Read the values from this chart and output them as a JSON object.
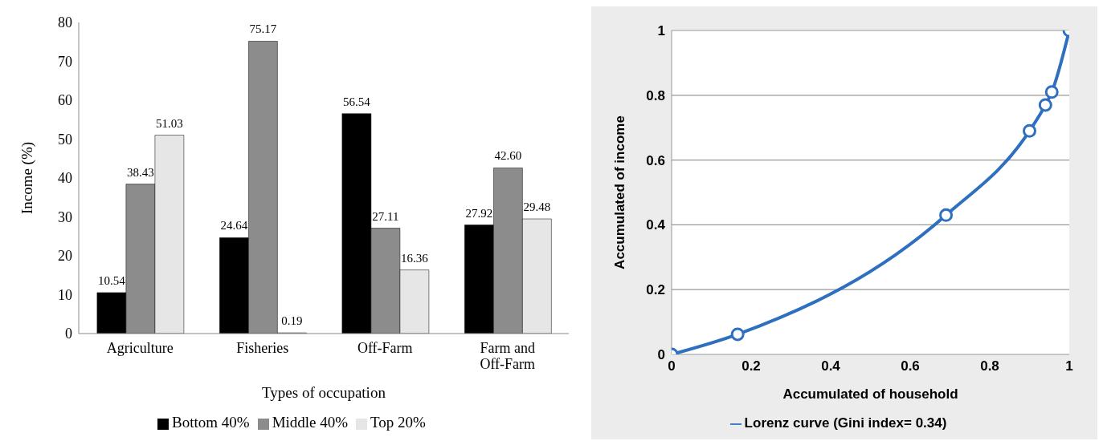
{
  "chart_data": [
    {
      "type": "bar",
      "xlabel": "Types of occupation",
      "ylabel": "Income (%)",
      "categories": [
        "Agriculture",
        "Fisheries",
        "Off-Farm",
        "Farm and Off-Farm"
      ],
      "series": [
        {
          "name": "Bottom 40%",
          "color": "#000000",
          "values": [
            10.54,
            24.64,
            56.54,
            27.92
          ],
          "value_labels": [
            "10.54",
            "24.64",
            "56.54",
            "27.92"
          ]
        },
        {
          "name": "Middle 40%",
          "color": "#8c8c8c",
          "values": [
            38.43,
            75.17,
            27.11,
            42.6
          ],
          "value_labels": [
            "38.43",
            "75.17",
            "27.11",
            "42.60"
          ]
        },
        {
          "name": "Top 20%",
          "color": "#e6e6e6",
          "values": [
            51.03,
            0.19,
            16.36,
            29.48
          ],
          "value_labels": [
            "51.03",
            "0.19",
            "16.36",
            "29.48"
          ]
        }
      ],
      "ylim": [
        0,
        80
      ],
      "yticks": [
        0,
        10,
        20,
        30,
        40,
        50,
        60,
        70,
        80
      ],
      "grid": false,
      "legend": "bottom"
    },
    {
      "type": "line",
      "xlabel": "Accumulated of household",
      "ylabel": "Accumulated of income",
      "series": [
        {
          "name": "Lorenz curve (Gini index= 0.34)",
          "color": "#2e6fc0",
          "x": [
            0,
            0.166,
            0.69,
            0.9,
            0.94,
            0.956,
            1
          ],
          "values": [
            0,
            0.062,
            0.43,
            0.69,
            0.77,
            0.81,
            1
          ]
        }
      ],
      "xlim": [
        0,
        1
      ],
      "xticks": [
        0,
        0.2,
        0.4,
        0.6,
        0.8,
        1
      ],
      "ylim": [
        0,
        1
      ],
      "yticks": [
        0,
        0.2,
        0.4,
        0.6,
        0.8,
        1
      ],
      "grid": "y",
      "legend": "bottom",
      "marker": "circle",
      "line_style": "solid"
    }
  ]
}
